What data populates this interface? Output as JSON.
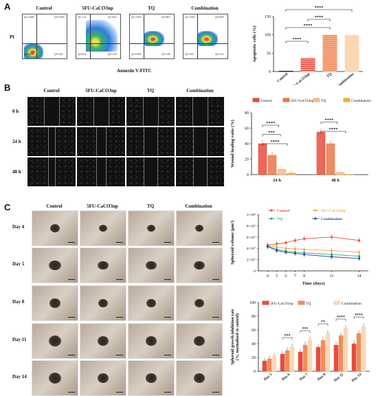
{
  "panels": {
    "A": "A",
    "B": "B",
    "C": "C"
  },
  "flow": {
    "axis_y": "PI",
    "axis_x": "Annexin V-FITC",
    "groups": [
      {
        "label": "Control",
        "q": [
          "Q1 0.065",
          "Q2 0.000",
          "Q3 3.62",
          "Q4 96.3"
        ]
      },
      {
        "label": "5FU-CaCO3np",
        "q": [
          "Q1 1.12",
          "Q2 33.4",
          "Q3 2.08",
          "Q4 63.4"
        ]
      },
      {
        "label": "TQ",
        "q": [
          "Q1 0.000",
          "Q2 98.0",
          "Q3 1.98",
          "Q4 0.000"
        ]
      },
      {
        "label": "Combination",
        "q": [
          "Q1 0.000",
          "Q2 99.8",
          "Q3 0.19",
          "Q4 0.00"
        ]
      }
    ]
  },
  "chart_data": [
    {
      "type": "bar",
      "id": "apoptotic",
      "categories": [
        "Control",
        "5FU-CaCO3np",
        "TQ",
        "Combination"
      ],
      "values": [
        1,
        36,
        99,
        99
      ],
      "ylabel": "Apoptotic cells (%)",
      "ylim": [
        0,
        150
      ],
      "yticks": [
        "0",
        "50",
        "100",
        "150"
      ],
      "sig": [
        "****",
        "****",
        "****",
        "****"
      ],
      "colors": [
        "#ffffff",
        "#e74c3c",
        "#f28c5a",
        "#fad7b5"
      ]
    },
    {
      "type": "bar",
      "id": "wound",
      "groups": [
        "24 h",
        "48 h"
      ],
      "series": [
        {
          "name": "Control",
          "values": [
            40,
            55
          ],
          "color": "#e74c3c"
        },
        {
          "name": "5FU-CaCO3np",
          "values": [
            25,
            40
          ],
          "color": "#e8784a"
        },
        {
          "name": "TQ",
          "values": [
            7,
            3
          ],
          "color": "#f6b98a"
        },
        {
          "name": "Combination",
          "values": [
            2,
            0
          ],
          "color": "#f2a93b"
        }
      ],
      "ylabel": "Wound healing ratio (%)",
      "ylim": [
        0,
        80
      ],
      "yticks": [
        "0",
        "20",
        "40",
        "60",
        "80"
      ],
      "sig": [
        "****",
        "***",
        "****",
        "****",
        "****"
      ]
    },
    {
      "type": "line",
      "id": "volume",
      "x": [
        4,
        5,
        6,
        7,
        8,
        11,
        14
      ],
      "series": [
        {
          "name": "Control",
          "values": [
            4.6,
            4.8,
            5.0,
            5.4,
            5.7,
            6.0,
            5.4
          ],
          "color": "#e74c3c"
        },
        {
          "name": "5FU-CaCO3np",
          "values": [
            4.5,
            4.2,
            4.0,
            3.9,
            3.8,
            3.6,
            3.3
          ],
          "color": "#f2a93b"
        },
        {
          "name": "TQ",
          "values": [
            4.4,
            3.8,
            3.5,
            3.3,
            3.2,
            2.9,
            2.6
          ],
          "color": "#2aa39a"
        },
        {
          "name": "Combination",
          "values": [
            4.3,
            3.6,
            3.3,
            3.1,
            2.9,
            2.5,
            2.2
          ],
          "color": "#2b4a8a"
        }
      ],
      "xlabel": "Time (days)",
      "ylabel": "Spheroid volume (µm³)",
      "xticks": [
        "4",
        "5",
        "6",
        "7",
        "8",
        "11",
        "14"
      ],
      "yticks": [
        "0",
        "2×10⁷",
        "4×10⁷",
        "6×10⁷",
        "8×10⁷",
        "1×10⁸"
      ],
      "ylim": [
        0,
        10
      ]
    },
    {
      "type": "bar",
      "id": "inhibition",
      "categories": [
        "Day 5",
        "Day 6",
        "Day 7",
        "Day 8",
        "Day 11",
        "Day 14"
      ],
      "series": [
        {
          "name": "5FU-CaCO3np",
          "values": [
            15,
            25,
            28,
            35,
            38,
            40
          ],
          "color": "#e74c3c"
        },
        {
          "name": "TQ",
          "values": [
            18,
            30,
            38,
            45,
            52,
            55
          ],
          "color": "#f28c5a"
        },
        {
          "name": "Combination",
          "values": [
            22,
            35,
            45,
            55,
            62,
            65
          ],
          "color": "#fad7b5"
        }
      ],
      "ylabel": "Spheroid growth inhibition rate (%, normalized to control)",
      "ylim": [
        0,
        100
      ],
      "yticks": [
        "0",
        "20",
        "40",
        "60",
        "80",
        "100"
      ],
      "sig": [
        "***",
        "***",
        "**",
        "****",
        "****"
      ]
    }
  ],
  "scratch": {
    "headers": [
      "Control",
      "5FU-CaCO3np",
      "TQ",
      "Combination"
    ],
    "rows": [
      "0 h",
      "24 h",
      "48 h"
    ]
  },
  "spheroid": {
    "headers": [
      "Control",
      "5FU-CaCO3np",
      "TQ",
      "Combination"
    ],
    "rows": [
      "Day 4",
      "Day 5",
      "Day 8",
      "Day 11",
      "Day 14"
    ]
  }
}
